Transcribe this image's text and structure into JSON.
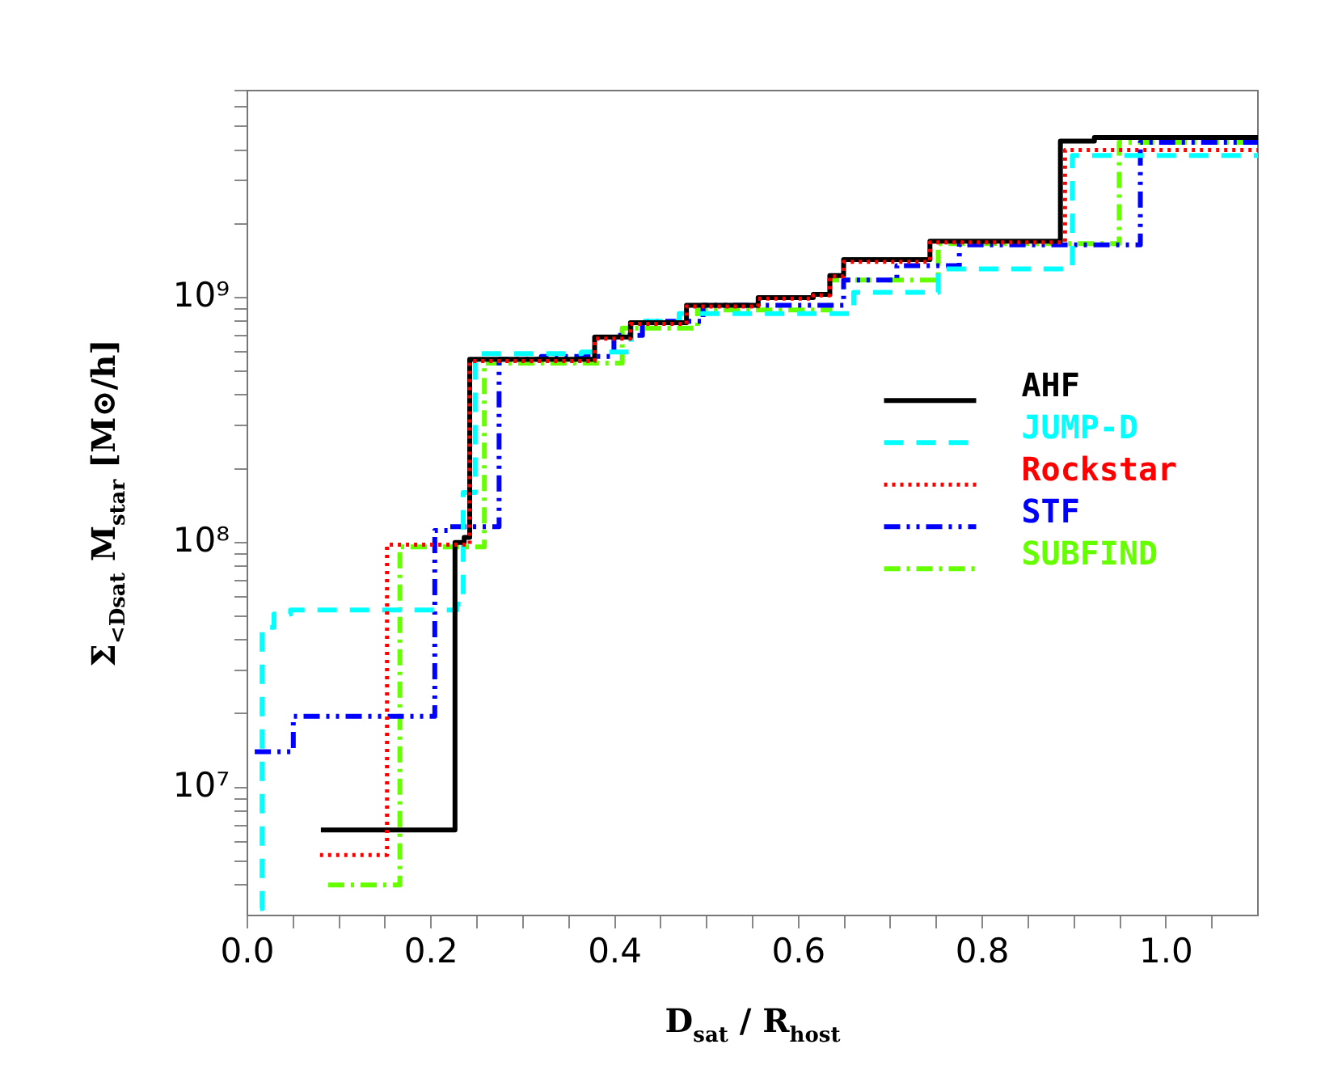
{
  "chart_data": {
    "type": "step",
    "xlabel": "D$_{sat}$ / R$_{host}$",
    "ylabel": "Σ$_{<Dsat}$ M$_{star}$ [M⊙/h]",
    "xlim": [
      0,
      1.1
    ],
    "xticks": [
      {
        "value": 0,
        "label": "0.0"
      },
      {
        "value": 0.05,
        "label": null
      },
      {
        "value": 0.1,
        "label": null
      },
      {
        "value": 0.15,
        "label": null
      },
      {
        "value": 0.2,
        "label": "0.2"
      },
      {
        "value": 0.25,
        "label": null
      },
      {
        "value": 0.3,
        "label": null
      },
      {
        "value": 0.35,
        "label": null
      },
      {
        "value": 0.4,
        "label": "0.4"
      },
      {
        "value": 0.45,
        "label": null
      },
      {
        "value": 0.5,
        "label": null
      },
      {
        "value": 0.55,
        "label": null
      },
      {
        "value": 0.6,
        "label": "0.6"
      },
      {
        "value": 0.65,
        "label": null
      },
      {
        "value": 0.7,
        "label": null
      },
      {
        "value": 0.75,
        "label": null
      },
      {
        "value": 0.8,
        "label": "0.8"
      },
      {
        "value": 0.85,
        "label": null
      },
      {
        "value": 0.9,
        "label": null
      },
      {
        "value": 0.95,
        "label": null
      },
      {
        "value": 1.0,
        "label": "1.0"
      },
      {
        "value": 1.05,
        "label": null
      }
    ],
    "ylim": [
      3000000,
      7000000000
    ],
    "log": "y",
    "yticks": [
      {
        "value": 4000000,
        "label": null
      },
      {
        "value": 5000000,
        "label": null
      },
      {
        "value": 6000000,
        "label": null
      },
      {
        "value": 7000000,
        "label": null
      },
      {
        "value": 8000000,
        "label": null
      },
      {
        "value": 9000000,
        "label": null
      },
      {
        "value": 10000000,
        "label": "10⁷"
      },
      {
        "value": 20000000,
        "label": null
      },
      {
        "value": 30000000,
        "label": null
      },
      {
        "value": 40000000,
        "label": null
      },
      {
        "value": 50000000,
        "label": null
      },
      {
        "value": 60000000,
        "label": null
      },
      {
        "value": 70000000,
        "label": null
      },
      {
        "value": 80000000,
        "label": null
      },
      {
        "value": 90000000,
        "label": null
      },
      {
        "value": 100000000,
        "label": "10⁸"
      },
      {
        "value": 200000000,
        "label": null
      },
      {
        "value": 300000000,
        "label": null
      },
      {
        "value": 400000000,
        "label": null
      },
      {
        "value": 500000000,
        "label": null
      },
      {
        "value": 600000000,
        "label": null
      },
      {
        "value": 700000000,
        "label": null
      },
      {
        "value": 800000000,
        "label": null
      },
      {
        "value": 900000000,
        "label": null
      },
      {
        "value": 1000000000,
        "label": "10⁹"
      },
      {
        "value": 2000000000,
        "label": null
      },
      {
        "value": 3000000000,
        "label": null
      },
      {
        "value": 4000000000,
        "label": null
      },
      {
        "value": 5000000000,
        "label": null
      },
      {
        "value": 6000000000,
        "label": null
      },
      {
        "value": 7000000000,
        "label": null
      }
    ],
    "grid": false,
    "legend": "right",
    "marker": "none",
    "series": [
      {
        "name": "AHF",
        "color": "#000000",
        "line_style": "solid",
        "x": [
          0.08,
          0.226,
          0.236,
          0.242,
          0.378,
          0.417,
          0.478,
          0.556,
          0.616,
          0.634,
          0.649,
          0.743,
          0.885,
          0.922,
          1.1
        ],
        "values": [
          6700000,
          100000000,
          105000000,
          560000000,
          690000000,
          790000000,
          930000000,
          1000000000,
          1030000000,
          1230000000,
          1430000000,
          1700000000,
          4350000000,
          4500000000,
          4500000000
        ]
      },
      {
        "name": "JUMP-D",
        "color": "#00ffff",
        "line_style": "dashed",
        "x": [
          0.014,
          0.016,
          0.029,
          0.047,
          0.228,
          0.235,
          0.248,
          0.364,
          0.418,
          0.47,
          0.66,
          0.752,
          0.898,
          1.1
        ],
        "values": [
          3200000,
          45000000,
          51000000,
          53000000,
          56000000,
          160000000,
          590000000,
          600000000,
          800000000,
          860000000,
          1050000000,
          1310000000,
          3800000000,
          3800000000
        ]
      },
      {
        "name": "Rockstar",
        "color": "#ff0000",
        "line_style": "dotted",
        "x": [
          0.079,
          0.152,
          0.242,
          0.378,
          0.417,
          0.478,
          0.556,
          0.616,
          0.634,
          0.649,
          0.743,
          0.89,
          1.1
        ],
        "values": [
          5300000,
          98000000,
          550000000,
          680000000,
          780000000,
          920000000,
          990000000,
          1020000000,
          1220000000,
          1400000000,
          1680000000,
          4000000000,
          4000000000
        ]
      },
      {
        "name": "STF",
        "color": "#0000ff",
        "line_style": "dashdotdot",
        "x": [
          0.008,
          0.05,
          0.204,
          0.22,
          0.274,
          0.32,
          0.399,
          0.43,
          0.496,
          0.649,
          0.707,
          0.775,
          0.972,
          1.1
        ],
        "values": [
          14000000,
          19500000,
          112000000,
          116000000,
          560000000,
          575000000,
          700000000,
          800000000,
          930000000,
          1180000000,
          1350000000,
          1640000000,
          4300000000,
          4300000000
        ]
      },
      {
        "name": "SUBFIND",
        "color": "#66ff00",
        "line_style": "dashdot",
        "x": [
          0.088,
          0.166,
          0.258,
          0.408,
          0.49,
          0.634,
          0.752,
          0.949,
          1.1
        ],
        "values": [
          4000000,
          96000000,
          540000000,
          750000000,
          890000000,
          1180000000,
          1660000000,
          4300000000,
          4300000000
        ]
      }
    ]
  }
}
